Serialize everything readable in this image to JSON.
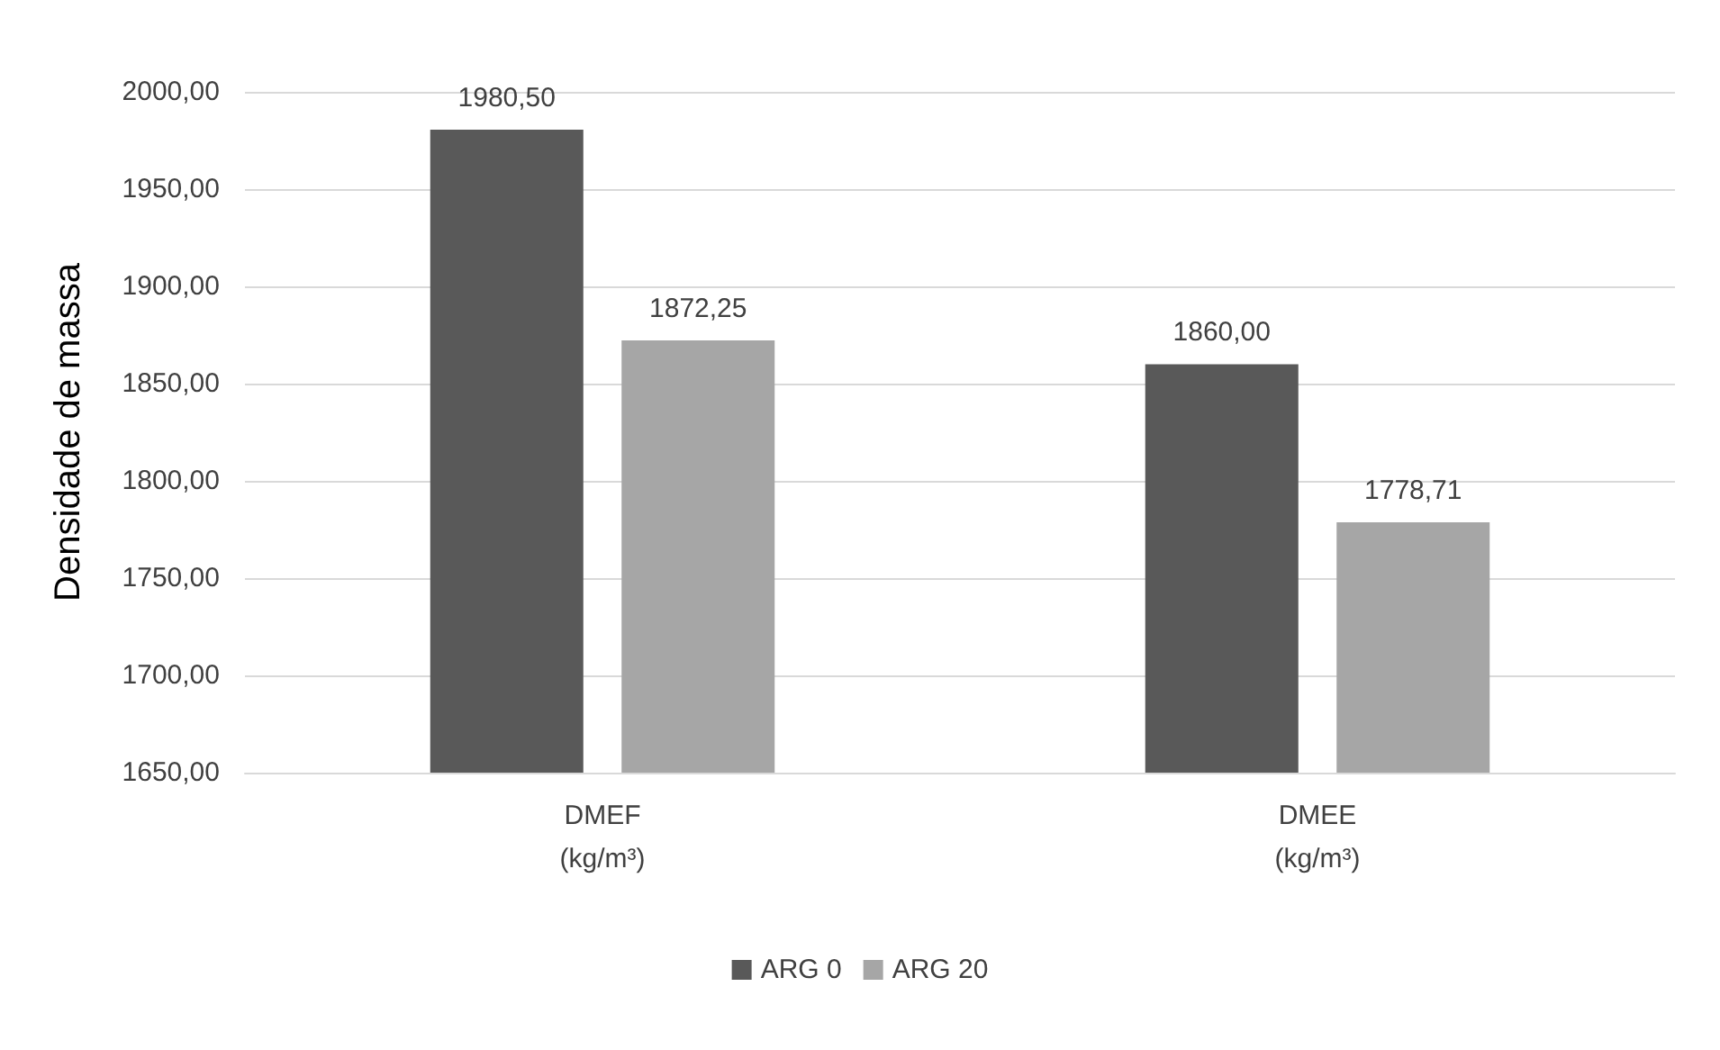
{
  "chart_data": {
    "type": "bar",
    "ylabel": "Densidade de massa",
    "categories": [
      "DMEF\n(kg/m³)",
      "DMEE\n(kg/m³)"
    ],
    "series": [
      {
        "name": "ARG 0",
        "color": "#595959",
        "values": [
          1980.5,
          1860
        ],
        "value_labels": [
          "1980,50",
          "1860,00"
        ]
      },
      {
        "name": "ARG 20",
        "color": "#a6a6a6",
        "values": [
          1872.25,
          1778.71
        ],
        "value_labels": [
          "1872,25",
          "1778,71"
        ]
      }
    ],
    "ylim": [
      1650,
      2000
    ],
    "yticks": [
      {
        "value": 1650,
        "label": "1650,00"
      },
      {
        "value": 1700,
        "label": "1700,00"
      },
      {
        "value": 1750,
        "label": "1750,00"
      },
      {
        "value": 1800,
        "label": "1800,00"
      },
      {
        "value": 1850,
        "label": "1850,00"
      },
      {
        "value": 1900,
        "label": "1900,00"
      },
      {
        "value": 1950,
        "label": "1950,00"
      },
      {
        "value": 2000,
        "label": "2000,00"
      }
    ],
    "grid": "y",
    "legend": "bottom"
  }
}
